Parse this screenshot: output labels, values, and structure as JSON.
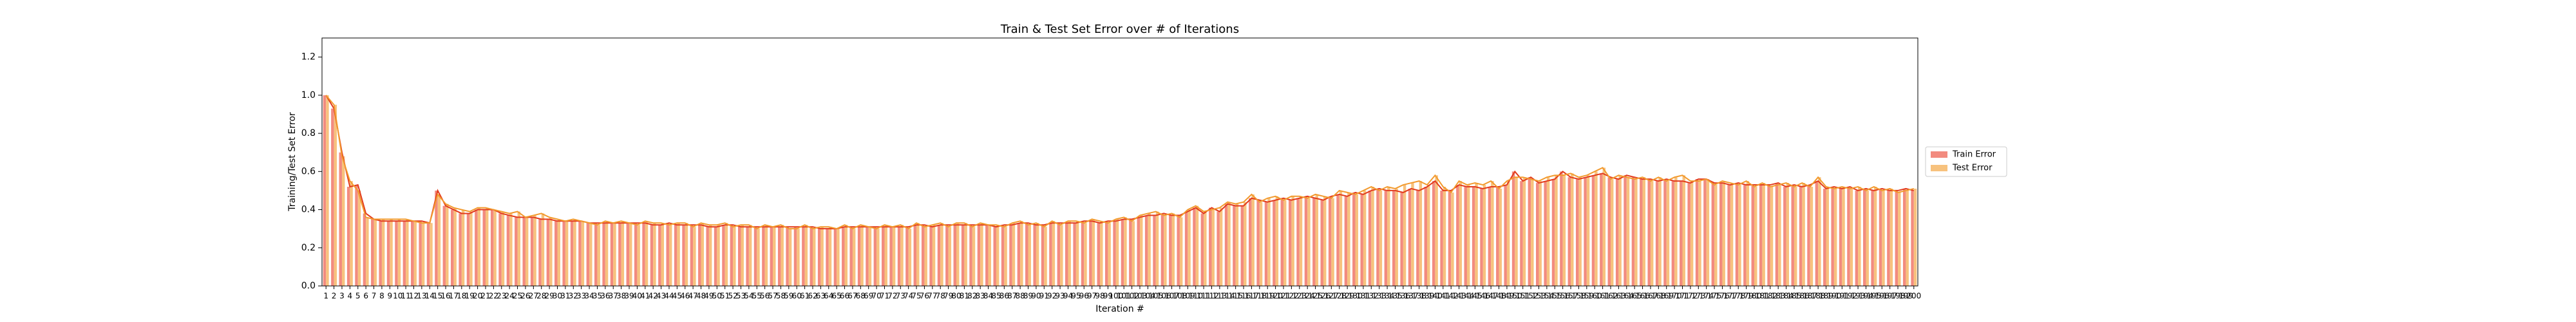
{
  "chart_data": {
    "type": "bar_line",
    "title": "Train & Test Set Error over # of Iterations",
    "xlabel": "Iteration #",
    "ylabel": "Training/Test Set Error",
    "categories": [
      1,
      2,
      3,
      4,
      5,
      6,
      7,
      8,
      9,
      10,
      11,
      12,
      13,
      14,
      15,
      16,
      17,
      18,
      19,
      20,
      21,
      22,
      23,
      24,
      25,
      26,
      27,
      28,
      29,
      30,
      31,
      32,
      33,
      34,
      35,
      36,
      37,
      38,
      39,
      40,
      41,
      42,
      43,
      44,
      45,
      46,
      47,
      48,
      49,
      50,
      51,
      52,
      53,
      54,
      55,
      56,
      57,
      58,
      59,
      60,
      61,
      62,
      63,
      64,
      65,
      66,
      67,
      68,
      69,
      70,
      71,
      72,
      73,
      74,
      75,
      76,
      77,
      78,
      79,
      80,
      81,
      82,
      83,
      84,
      85,
      86,
      87,
      88,
      89,
      90,
      91,
      92,
      93,
      94,
      95,
      96,
      97,
      98,
      99,
      100,
      101,
      102,
      103,
      104,
      105,
      106,
      107,
      108,
      109,
      110,
      111,
      112,
      113,
      114,
      115,
      116,
      117,
      118,
      119,
      120,
      121,
      122,
      123,
      124,
      125,
      126,
      127,
      128,
      129,
      130,
      131,
      132,
      133,
      134,
      135,
      136,
      137,
      138,
      139,
      140,
      141,
      142,
      143,
      144,
      145,
      146,
      147,
      148,
      149,
      150,
      151,
      152,
      153,
      154,
      155,
      156,
      157,
      158,
      159,
      160,
      161,
      162,
      163,
      164,
      165,
      166,
      167,
      168,
      169,
      170,
      171,
      172,
      173,
      174,
      175,
      176,
      177,
      178,
      179,
      180,
      181,
      182,
      183,
      184,
      185,
      186,
      187,
      188,
      189,
      190,
      191,
      192,
      193,
      194,
      195,
      196,
      197,
      198,
      199,
      200
    ],
    "series": [
      {
        "name": "Train Error",
        "color": "#f28b7f",
        "line_color": "#e23b1c",
        "values": [
          1.0,
          0.93,
          0.7,
          0.52,
          0.53,
          0.38,
          0.35,
          0.34,
          0.34,
          0.34,
          0.34,
          0.34,
          0.34,
          0.33,
          0.5,
          0.42,
          0.4,
          0.38,
          0.38,
          0.4,
          0.4,
          0.4,
          0.38,
          0.37,
          0.36,
          0.36,
          0.36,
          0.35,
          0.35,
          0.34,
          0.34,
          0.34,
          0.34,
          0.33,
          0.33,
          0.33,
          0.33,
          0.33,
          0.33,
          0.33,
          0.33,
          0.32,
          0.32,
          0.33,
          0.32,
          0.32,
          0.32,
          0.32,
          0.31,
          0.31,
          0.32,
          0.32,
          0.31,
          0.31,
          0.31,
          0.31,
          0.31,
          0.31,
          0.31,
          0.31,
          0.31,
          0.31,
          0.3,
          0.3,
          0.3,
          0.31,
          0.31,
          0.31,
          0.31,
          0.31,
          0.31,
          0.31,
          0.31,
          0.31,
          0.32,
          0.32,
          0.31,
          0.32,
          0.32,
          0.32,
          0.32,
          0.32,
          0.32,
          0.32,
          0.31,
          0.32,
          0.32,
          0.33,
          0.33,
          0.32,
          0.32,
          0.33,
          0.33,
          0.33,
          0.33,
          0.34,
          0.34,
          0.33,
          0.34,
          0.34,
          0.35,
          0.35,
          0.36,
          0.37,
          0.37,
          0.38,
          0.37,
          0.37,
          0.39,
          0.41,
          0.38,
          0.41,
          0.39,
          0.43,
          0.42,
          0.42,
          0.46,
          0.45,
          0.44,
          0.45,
          0.46,
          0.45,
          0.46,
          0.47,
          0.46,
          0.45,
          0.47,
          0.48,
          0.47,
          0.49,
          0.48,
          0.5,
          0.51,
          0.5,
          0.5,
          0.49,
          0.51,
          0.5,
          0.52,
          0.55,
          0.5,
          0.5,
          0.53,
          0.52,
          0.52,
          0.51,
          0.52,
          0.52,
          0.53,
          0.6,
          0.55,
          0.57,
          0.54,
          0.55,
          0.56,
          0.6,
          0.57,
          0.56,
          0.57,
          0.58,
          0.59,
          0.57,
          0.56,
          0.58,
          0.57,
          0.56,
          0.56,
          0.55,
          0.56,
          0.55,
          0.55,
          0.54,
          0.56,
          0.56,
          0.54,
          0.54,
          0.53,
          0.54,
          0.53,
          0.53,
          0.53,
          0.53,
          0.54,
          0.52,
          0.53,
          0.52,
          0.53,
          0.55,
          0.51,
          0.52,
          0.51,
          0.52,
          0.5,
          0.51,
          0.5,
          0.51,
          0.5,
          0.5,
          0.51,
          0.5
        ]
      },
      {
        "name": "Test Error",
        "color": "#f7c27e",
        "line_color": "#f29a2e",
        "values": [
          1.0,
          0.95,
          0.68,
          0.55,
          0.5,
          0.36,
          0.35,
          0.35,
          0.35,
          0.35,
          0.35,
          0.34,
          0.33,
          0.33,
          0.48,
          0.43,
          0.41,
          0.4,
          0.39,
          0.41,
          0.41,
          0.4,
          0.39,
          0.38,
          0.39,
          0.36,
          0.37,
          0.38,
          0.36,
          0.35,
          0.34,
          0.35,
          0.34,
          0.33,
          0.32,
          0.34,
          0.33,
          0.34,
          0.33,
          0.32,
          0.34,
          0.33,
          0.33,
          0.32,
          0.33,
          0.33,
          0.31,
          0.33,
          0.32,
          0.32,
          0.33,
          0.31,
          0.32,
          0.32,
          0.3,
          0.32,
          0.31,
          0.32,
          0.3,
          0.3,
          0.32,
          0.3,
          0.31,
          0.31,
          0.3,
          0.32,
          0.3,
          0.32,
          0.31,
          0.3,
          0.32,
          0.31,
          0.32,
          0.3,
          0.33,
          0.31,
          0.32,
          0.33,
          0.31,
          0.33,
          0.33,
          0.31,
          0.33,
          0.32,
          0.32,
          0.31,
          0.33,
          0.34,
          0.32,
          0.33,
          0.31,
          0.34,
          0.32,
          0.34,
          0.34,
          0.33,
          0.35,
          0.34,
          0.33,
          0.35,
          0.36,
          0.34,
          0.37,
          0.38,
          0.39,
          0.37,
          0.38,
          0.36,
          0.4,
          0.42,
          0.39,
          0.4,
          0.41,
          0.44,
          0.43,
          0.44,
          0.48,
          0.44,
          0.46,
          0.47,
          0.45,
          0.47,
          0.47,
          0.46,
          0.48,
          0.47,
          0.46,
          0.5,
          0.49,
          0.48,
          0.5,
          0.52,
          0.5,
          0.52,
          0.51,
          0.53,
          0.54,
          0.55,
          0.53,
          0.58,
          0.52,
          0.49,
          0.55,
          0.53,
          0.54,
          0.53,
          0.55,
          0.51,
          0.55,
          0.57,
          0.57,
          0.56,
          0.55,
          0.57,
          0.58,
          0.58,
          0.59,
          0.57,
          0.58,
          0.6,
          0.62,
          0.56,
          0.58,
          0.57,
          0.56,
          0.57,
          0.55,
          0.57,
          0.55,
          0.57,
          0.58,
          0.55,
          0.55,
          0.56,
          0.53,
          0.55,
          0.54,
          0.53,
          0.55,
          0.52,
          0.54,
          0.52,
          0.53,
          0.54,
          0.52,
          0.54,
          0.52,
          0.57,
          0.52,
          0.51,
          0.52,
          0.51,
          0.52,
          0.5,
          0.52,
          0.5,
          0.51,
          0.49,
          0.5,
          0.51
        ]
      }
    ],
    "ylim": [
      0,
      1.3
    ],
    "yticks": [
      {
        "value": 0,
        "label": "0.0"
      },
      0.2,
      0.4,
      0.6,
      0.8,
      {
        "value": 1,
        "label": "1.0"
      },
      1.2
    ],
    "legend": "right"
  }
}
